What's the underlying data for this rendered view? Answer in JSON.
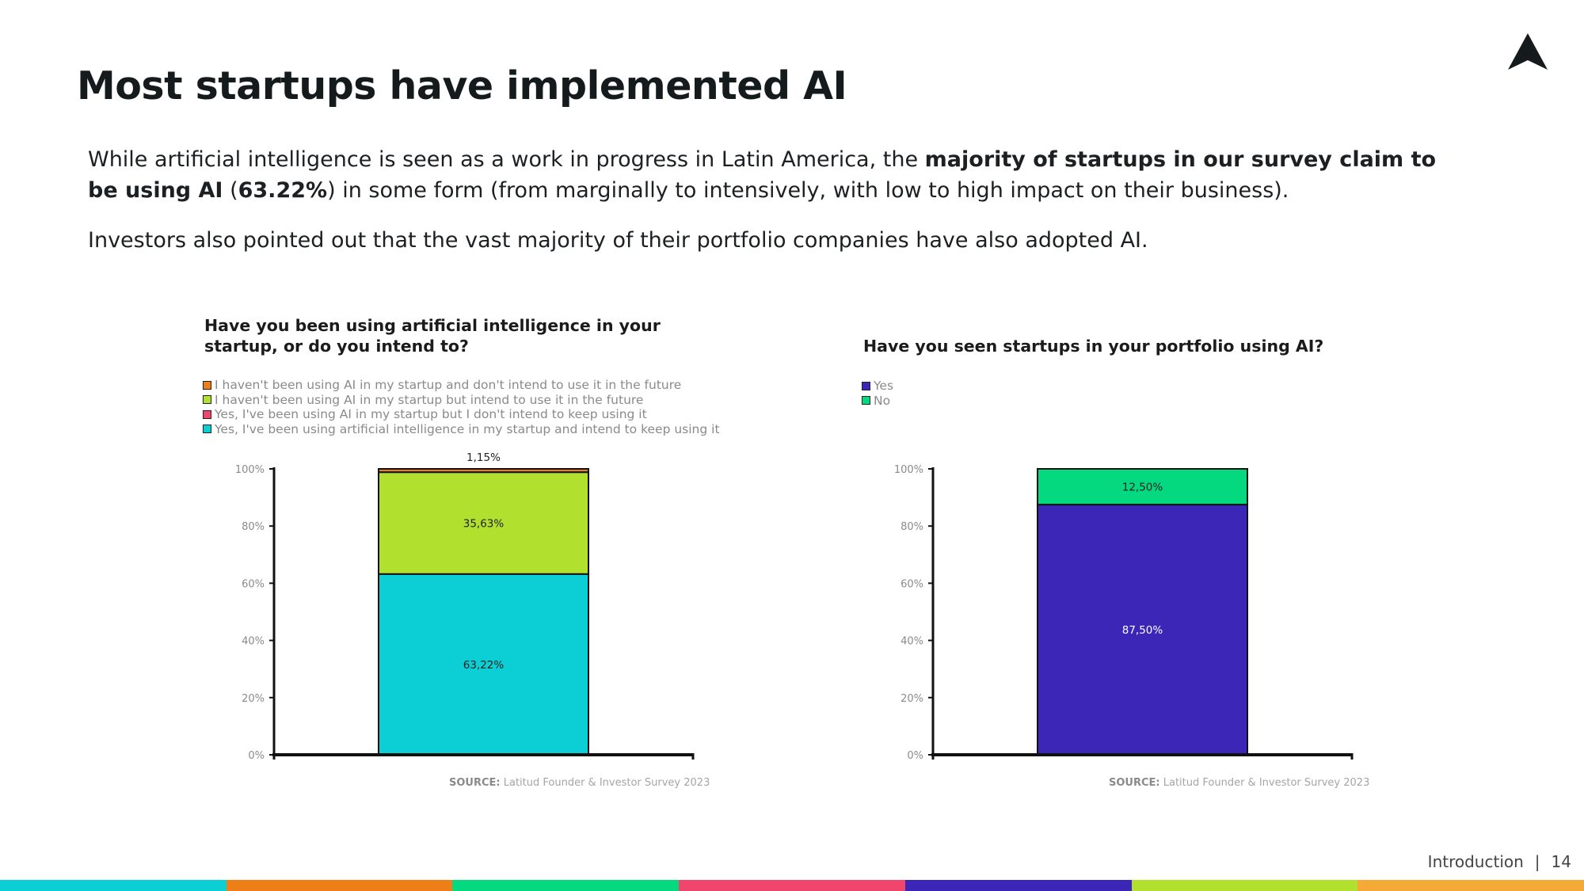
{
  "slide": {
    "title": "Most startups have implemented AI",
    "para1": {
      "t1": "While artificial intelligence is seen as a work in progress in Latin America, the ",
      "b1": "majority of startups in our survey claim to be using AI",
      "t2": " (",
      "b2": "63.22%",
      "t3": ") in some form (from marginally to intensively, with low to high impact on their business)."
    },
    "para2": "Investors also pointed out that the vast majority of their portfolio companies have also adopted AI."
  },
  "chart_data": [
    {
      "type": "bar",
      "stacked": true,
      "title": "Have you been using artificial intelligence in your startup, or do you intend to?",
      "categories": [
        ""
      ],
      "series": [
        {
          "name": "Yes, I've been using artificial intelligence in my startup and intend to keep using it",
          "values": [
            63.22
          ],
          "label": "63,22%",
          "color": "#0bcfd4"
        },
        {
          "name": "Yes, I've been using AI in my startup but I don't intend to keep using it",
          "values": [
            0
          ],
          "label": "",
          "color": "#f0466e"
        },
        {
          "name": "I haven't been using AI in my startup but intend to use it in the future",
          "values": [
            35.63
          ],
          "label": "35,63%",
          "color": "#b2e02e"
        },
        {
          "name": "I haven't been using AI in my startup and don't intend to use it in the future",
          "values": [
            1.15
          ],
          "label": "1,15%",
          "color": "#ee7e18"
        }
      ],
      "legend_order": [
        3,
        2,
        1,
        0
      ],
      "yticks": [
        "0%",
        "20%",
        "40%",
        "60%",
        "80%",
        "100%"
      ],
      "ylim": [
        0,
        100
      ],
      "source_label": "SOURCE:",
      "source_text": "Latitud Founder & Investor Survey 2023"
    },
    {
      "type": "bar",
      "stacked": true,
      "title": "Have you seen startups in your portfolio using AI?",
      "categories": [
        ""
      ],
      "series": [
        {
          "name": "Yes",
          "values": [
            87.5
          ],
          "label": "87,50%",
          "color": "#3b26b8"
        },
        {
          "name": "No",
          "values": [
            12.5
          ],
          "label": "12,50%",
          "color": "#05d97f"
        }
      ],
      "legend_order": [
        0,
        1
      ],
      "yticks": [
        "0%",
        "20%",
        "40%",
        "60%",
        "80%",
        "100%"
      ],
      "ylim": [
        0,
        100
      ],
      "source_label": "SOURCE:",
      "source_text": "Latitud Founder & Investor Survey 2023"
    }
  ],
  "footer": {
    "section": "Introduction",
    "separator": "|",
    "page": "14"
  },
  "stripe_colors": [
    "#0bcfd4",
    "#ee7e18",
    "#05d97f",
    "#f0466e",
    "#3b26b8",
    "#b2e02e",
    "#f5a936"
  ]
}
